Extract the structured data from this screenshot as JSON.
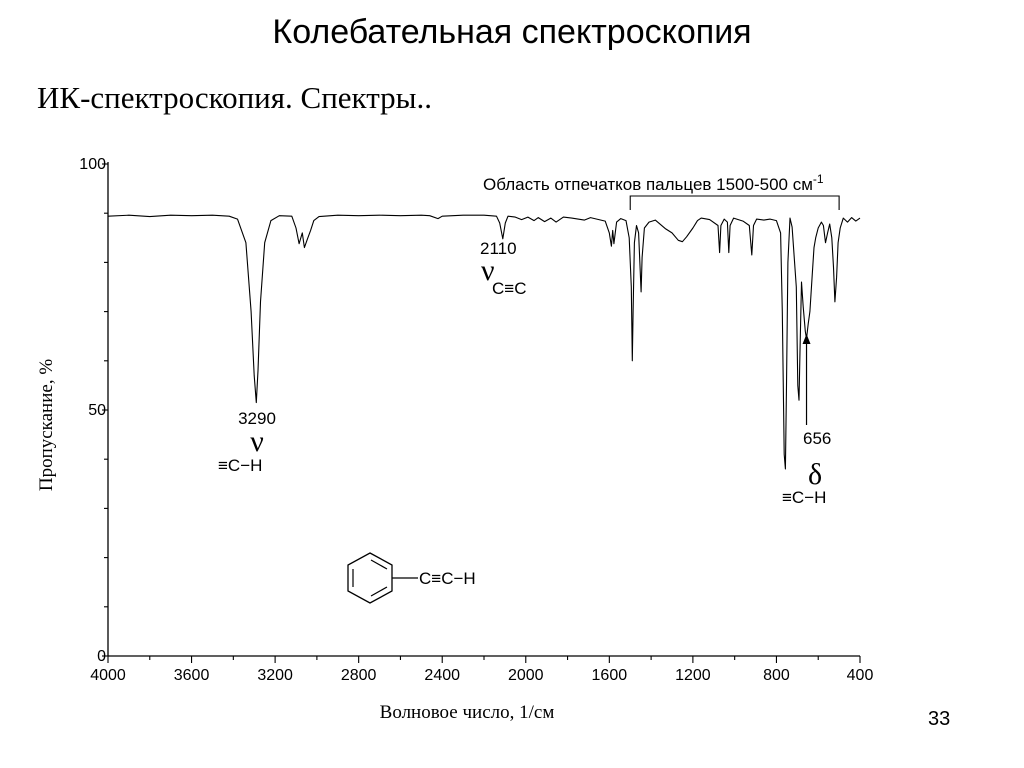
{
  "slide": {
    "title": "Колебательная спектроскопия",
    "subtitle": "ИК-спектроскопия. Спектры..",
    "page_number": "33"
  },
  "chart_data": {
    "type": "line",
    "xlabel": "Волновое число, 1/см",
    "ylabel": "Пропускание, %",
    "xlim": [
      4000,
      400
    ],
    "ylim": [
      0,
      100
    ],
    "x_ticks": [
      "4000",
      "3600",
      "3200",
      "2800",
      "2400",
      "2000",
      "1600",
      "1200",
      "800",
      "400"
    ],
    "y_ticks": [
      "100",
      "50",
      "0"
    ],
    "grid": false,
    "baseline": 89.5,
    "series": [
      {
        "points": [
          [
            4000,
            89.4
          ],
          [
            3900,
            89.6
          ],
          [
            3800,
            89.3
          ],
          [
            3700,
            89.6
          ],
          [
            3600,
            89.5
          ],
          [
            3500,
            89.6
          ],
          [
            3420,
            89.4
          ],
          [
            3380,
            88.8
          ],
          [
            3340,
            84
          ],
          [
            3315,
            70
          ],
          [
            3300,
            57
          ],
          [
            3290,
            51.5
          ],
          [
            3282,
            58
          ],
          [
            3270,
            72
          ],
          [
            3250,
            84
          ],
          [
            3220,
            88.5
          ],
          [
            3180,
            89.5
          ],
          [
            3120,
            89.4
          ],
          [
            3100,
            87
          ],
          [
            3085,
            83.8
          ],
          [
            3070,
            86
          ],
          [
            3060,
            83
          ],
          [
            3045,
            84.8
          ],
          [
            3030,
            86.5
          ],
          [
            3015,
            88.5
          ],
          [
            2990,
            89.3
          ],
          [
            2900,
            89.6
          ],
          [
            2800,
            89.5
          ],
          [
            2700,
            89.6
          ],
          [
            2600,
            89.5
          ],
          [
            2500,
            89.6
          ],
          [
            2460,
            89.5
          ],
          [
            2420,
            88.9
          ],
          [
            2400,
            89.4
          ],
          [
            2300,
            89.6
          ],
          [
            2200,
            89.6
          ],
          [
            2140,
            89.4
          ],
          [
            2125,
            88
          ],
          [
            2110,
            84.8
          ],
          [
            2098,
            88
          ],
          [
            2085,
            89.4
          ],
          [
            2050,
            89.2
          ],
          [
            2020,
            88.7
          ],
          [
            1990,
            89.2
          ],
          [
            1960,
            88.5
          ],
          [
            1940,
            89.1
          ],
          [
            1910,
            88.3
          ],
          [
            1880,
            89
          ],
          [
            1855,
            88.2
          ],
          [
            1820,
            89.2
          ],
          [
            1780,
            89
          ],
          [
            1720,
            88.6
          ],
          [
            1690,
            89.1
          ],
          [
            1660,
            88.8
          ],
          [
            1620,
            88.4
          ],
          [
            1600,
            86
          ],
          [
            1590,
            83.3
          ],
          [
            1584,
            86.5
          ],
          [
            1578,
            83.8
          ],
          [
            1565,
            88.2
          ],
          [
            1545,
            88.9
          ],
          [
            1520,
            88.5
          ],
          [
            1505,
            85
          ],
          [
            1495,
            75
          ],
          [
            1490,
            60
          ],
          [
            1486,
            70
          ],
          [
            1480,
            84
          ],
          [
            1470,
            87.5
          ],
          [
            1460,
            86
          ],
          [
            1448,
            74
          ],
          [
            1443,
            81
          ],
          [
            1432,
            87
          ],
          [
            1410,
            88.2
          ],
          [
            1380,
            88.6
          ],
          [
            1330,
            86.8
          ],
          [
            1300,
            86
          ],
          [
            1270,
            84.5
          ],
          [
            1250,
            84.2
          ],
          [
            1230,
            85.2
          ],
          [
            1200,
            87
          ],
          [
            1178,
            88.5
          ],
          [
            1160,
            89
          ],
          [
            1120,
            88.7
          ],
          [
            1080,
            87.5
          ],
          [
            1072,
            82
          ],
          [
            1066,
            87.5
          ],
          [
            1050,
            88.8
          ],
          [
            1035,
            88.2
          ],
          [
            1028,
            82
          ],
          [
            1022,
            87.5
          ],
          [
            1005,
            89
          ],
          [
            960,
            88.4
          ],
          [
            930,
            87.5
          ],
          [
            918,
            81.5
          ],
          [
            910,
            87.5
          ],
          [
            895,
            88.8
          ],
          [
            860,
            88.6
          ],
          [
            830,
            88.8
          ],
          [
            800,
            88.5
          ],
          [
            780,
            86
          ],
          [
            772,
            70
          ],
          [
            763,
            41
          ],
          [
            757,
            38
          ],
          [
            752,
            55
          ],
          [
            745,
            80
          ],
          [
            735,
            89
          ],
          [
            725,
            87.2
          ],
          [
            705,
            75
          ],
          [
            698,
            55
          ],
          [
            692,
            52
          ],
          [
            687,
            62
          ],
          [
            680,
            76
          ],
          [
            672,
            71
          ],
          [
            662,
            66
          ],
          [
            656,
            64.5
          ],
          [
            648,
            67.5
          ],
          [
            640,
            70
          ],
          [
            628,
            78
          ],
          [
            620,
            83
          ],
          [
            612,
            85
          ],
          [
            600,
            87
          ],
          [
            585,
            88.2
          ],
          [
            575,
            87.5
          ],
          [
            565,
            84
          ],
          [
            555,
            86
          ],
          [
            545,
            87.8
          ],
          [
            535,
            85
          ],
          [
            527,
            79
          ],
          [
            520,
            72
          ],
          [
            512,
            77
          ],
          [
            505,
            84
          ],
          [
            495,
            87
          ],
          [
            480,
            89
          ],
          [
            460,
            88.2
          ],
          [
            440,
            89.1
          ],
          [
            420,
            88.4
          ],
          [
            400,
            89
          ]
        ]
      }
    ],
    "annotations": {
      "fingerprint_label": "Область отпечатков пальцев 1500-500 см",
      "fingerprint_sup": "-1",
      "fingerprint_range": [
        1500,
        500
      ],
      "peak_3290": {
        "number": "3290",
        "greek": "ν",
        "group": "≡C−H"
      },
      "peak_2110": {
        "number": "2110",
        "greek": "ν",
        "group": "C≡C"
      },
      "peak_656": {
        "number": "656",
        "greek": "δ",
        "group": "≡C−H",
        "value": 656
      },
      "molecule_label": "C≡C−H"
    }
  }
}
